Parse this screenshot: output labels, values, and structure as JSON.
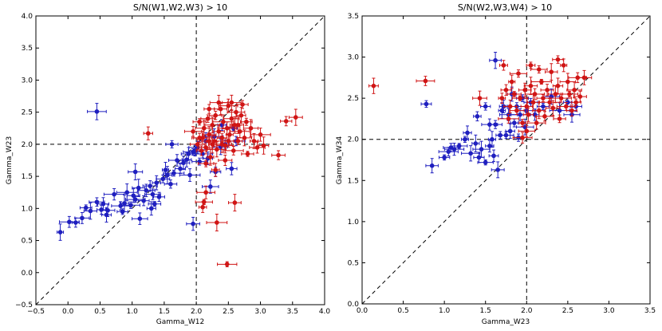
{
  "colors": {
    "blue": "#1f1fbf",
    "red": "#d01515",
    "axis": "#000000",
    "refline": "#000000"
  },
  "chart_data": [
    {
      "type": "scatter",
      "title": "S/N(W1,W2,W3) > 10",
      "xlabel": "Gamma_W12",
      "ylabel": "Gamma_W23",
      "xlim": [
        -0.5,
        4.0
      ],
      "ylim": [
        -0.5,
        4.0
      ],
      "xticks": [
        "−0.5",
        "0.0",
        "0.5",
        "1.0",
        "1.5",
        "2.0",
        "2.5",
        "3.0",
        "3.5",
        "4.0"
      ],
      "yticks": [
        "−0.5",
        "0.0",
        "0.5",
        "1.0",
        "1.5",
        "2.0",
        "2.5",
        "3.0",
        "3.5",
        "4.0"
      ],
      "reference_lines": {
        "vertical_x": 2.0,
        "horizontal_y": 2.0,
        "diagonal": "y=x"
      },
      "grid": false,
      "series": [
        {
          "color": "blue",
          "points": [
            [
              -0.12,
              0.63
            ],
            [
              0.02,
              0.79
            ],
            [
              0.12,
              0.78
            ],
            [
              0.22,
              0.85
            ],
            [
              0.28,
              1.01
            ],
            [
              0.35,
              0.96
            ],
            [
              0.45,
              1.1
            ],
            [
              0.52,
              0.98
            ],
            [
              0.55,
              1.07
            ],
            [
              0.62,
              0.97
            ],
            [
              0.72,
              1.22
            ],
            [
              0.82,
              1.04
            ],
            [
              0.88,
              1.08
            ],
            [
              0.92,
              1.25
            ],
            [
              0.98,
              1.05
            ],
            [
              1.02,
              1.2
            ],
            [
              1.05,
              1.14
            ],
            [
              1.1,
              1.32
            ],
            [
              1.12,
              0.84
            ],
            [
              1.18,
              1.12
            ],
            [
              1.22,
              1.28
            ],
            [
              1.28,
              1.35
            ],
            [
              1.32,
              1.22
            ],
            [
              1.35,
              1.07
            ],
            [
              1.38,
              1.4
            ],
            [
              1.42,
              1.18
            ],
            [
              1.48,
              1.46
            ],
            [
              1.52,
              1.6
            ],
            [
              1.55,
              1.52
            ],
            [
              1.6,
              1.38
            ],
            [
              1.65,
              1.55
            ],
            [
              1.7,
              1.75
            ],
            [
              1.75,
              1.62
            ],
            [
              1.8,
              1.71
            ],
            [
              1.85,
              1.76
            ],
            [
              1.88,
              1.85
            ],
            [
              1.9,
              1.52
            ],
            [
              1.95,
              1.88
            ],
            [
              1.98,
              1.9
            ],
            [
              2.02,
              1.95
            ],
            [
              2.05,
              1.73
            ],
            [
              2.1,
              1.85
            ],
            [
              2.15,
              2.05
            ],
            [
              2.18,
              1.78
            ],
            [
              2.22,
              1.34
            ],
            [
              2.28,
              2.12
            ],
            [
              2.3,
              1.57
            ],
            [
              2.38,
              1.96
            ],
            [
              2.4,
              2.3
            ],
            [
              2.45,
              2.0
            ],
            [
              2.55,
              1.62
            ],
            [
              2.58,
              2.25
            ],
            [
              2.62,
              2.05
            ],
            [
              1.05,
              1.57
            ],
            [
              1.62,
              2.0
            ],
            [
              0.45,
              2.51
            ],
            [
              1.95,
              0.76
            ],
            [
              0.6,
              0.9
            ],
            [
              0.85,
              0.95
            ],
            [
              1.3,
              1.0
            ]
          ]
        },
        {
          "color": "red",
          "points": [
            [
              1.25,
              2.17
            ],
            [
              1.95,
              2.2
            ],
            [
              2.02,
              2.0
            ],
            [
              2.05,
              2.35
            ],
            [
              2.08,
              1.9
            ],
            [
              2.1,
              2.1
            ],
            [
              2.12,
              2.25
            ],
            [
              2.15,
              1.95
            ],
            [
              2.18,
              2.4
            ],
            [
              2.2,
              2.15
            ],
            [
              2.22,
              1.8
            ],
            [
              2.25,
              2.3
            ],
            [
              2.28,
              2.05
            ],
            [
              2.3,
              2.45
            ],
            [
              2.32,
              1.92
            ],
            [
              2.35,
              2.2
            ],
            [
              2.38,
              2.55
            ],
            [
              2.4,
              2.1
            ],
            [
              2.42,
              2.35
            ],
            [
              2.45,
              1.98
            ],
            [
              2.48,
              2.25
            ],
            [
              2.5,
              2.6
            ],
            [
              2.52,
              2.15
            ],
            [
              2.55,
              2.4
            ],
            [
              2.58,
              1.9
            ],
            [
              2.6,
              2.3
            ],
            [
              2.62,
              2.5
            ],
            [
              2.65,
              2.05
            ],
            [
              2.68,
              2.2
            ],
            [
              2.7,
              2.45
            ],
            [
              2.72,
              2.62
            ],
            [
              2.75,
              2.1
            ],
            [
              2.78,
              2.35
            ],
            [
              2.8,
              1.85
            ],
            [
              2.85,
              2.25
            ],
            [
              2.9,
              2.05
            ],
            [
              2.95,
              1.95
            ],
            [
              3.0,
              2.15
            ],
            [
              3.05,
              1.98
            ],
            [
              2.2,
              2.55
            ],
            [
              2.35,
              2.65
            ],
            [
              2.55,
              2.65
            ],
            [
              2.15,
              1.7
            ],
            [
              2.3,
              1.6
            ],
            [
              2.45,
              1.75
            ],
            [
              2.15,
              1.25
            ],
            [
              2.12,
              1.1
            ],
            [
              2.1,
              1.02
            ],
            [
              2.6,
              1.09
            ],
            [
              2.32,
              0.78
            ],
            [
              2.48,
              0.13
            ],
            [
              3.28,
              1.83
            ],
            [
              3.4,
              2.36
            ],
            [
              3.55,
              2.42
            ],
            [
              2.25,
              2.0
            ],
            [
              2.4,
              2.0
            ],
            [
              2.5,
              2.05
            ],
            [
              2.65,
              2.3
            ],
            [
              2.05,
              2.1
            ],
            [
              2.2,
              2.05
            ]
          ]
        }
      ]
    },
    {
      "type": "scatter",
      "title": "S/N(W2,W3,W4) > 10",
      "xlabel": "Gamma_W23",
      "ylabel": "Gamma_W34",
      "xlim": [
        0.0,
        3.5
      ],
      "ylim": [
        0.0,
        3.5
      ],
      "xticks": [
        "0.0",
        "0.5",
        "1.0",
        "1.5",
        "2.0",
        "2.5",
        "3.0",
        "3.5"
      ],
      "yticks": [
        "0.0",
        "0.5",
        "1.0",
        "1.5",
        "2.0",
        "2.5",
        "3.0",
        "3.5"
      ],
      "reference_lines": {
        "vertical_x": 2.0,
        "horizontal_y": 2.0,
        "diagonal": "y=x"
      },
      "grid": false,
      "series": [
        {
          "color": "blue",
          "points": [
            [
              0.78,
              2.43
            ],
            [
              0.85,
              1.68
            ],
            [
              1.0,
              1.78
            ],
            [
              1.05,
              1.85
            ],
            [
              1.08,
              1.9
            ],
            [
              1.12,
              1.88
            ],
            [
              1.18,
              1.92
            ],
            [
              1.28,
              2.08
            ],
            [
              1.32,
              1.83
            ],
            [
              1.38,
              1.95
            ],
            [
              1.42,
              1.78
            ],
            [
              1.45,
              1.88
            ],
            [
              1.5,
              1.72
            ],
            [
              1.55,
              1.92
            ],
            [
              1.58,
              2.0
            ],
            [
              1.6,
              1.8
            ],
            [
              1.62,
              2.18
            ],
            [
              1.65,
              1.63
            ],
            [
              1.68,
              2.05
            ],
            [
              1.7,
              2.35
            ],
            [
              1.72,
              2.4
            ],
            [
              1.75,
              2.05
            ],
            [
              1.78,
              2.3
            ],
            [
              1.8,
              2.1
            ],
            [
              1.82,
              2.55
            ],
            [
              1.85,
              2.2
            ],
            [
              1.88,
              2.4
            ],
            [
              1.9,
              2.02
            ],
            [
              1.92,
              2.3
            ],
            [
              1.95,
              2.5
            ],
            [
              1.98,
              2.15
            ],
            [
              2.0,
              2.35
            ],
            [
              2.05,
              2.45
            ],
            [
              2.1,
              2.3
            ],
            [
              2.2,
              2.4
            ],
            [
              2.3,
              2.52
            ],
            [
              2.4,
              2.35
            ],
            [
              2.5,
              2.45
            ],
            [
              2.55,
              2.3
            ],
            [
              2.6,
              2.4
            ],
            [
              1.62,
              2.96
            ],
            [
              1.55,
              2.18
            ],
            [
              1.4,
              2.28
            ],
            [
              1.25,
              2.0
            ],
            [
              1.5,
              2.4
            ]
          ]
        },
        {
          "color": "red",
          "points": [
            [
              0.14,
              2.65
            ],
            [
              0.77,
              2.71
            ],
            [
              1.43,
              2.5
            ],
            [
              1.7,
              2.5
            ],
            [
              1.72,
              2.9
            ],
            [
              1.75,
              2.6
            ],
            [
              1.78,
              2.25
            ],
            [
              1.8,
              2.4
            ],
            [
              1.82,
              2.7
            ],
            [
              1.85,
              2.55
            ],
            [
              1.88,
              2.35
            ],
            [
              1.9,
              2.8
            ],
            [
              1.92,
              2.5
            ],
            [
              1.95,
              2.2
            ],
            [
              1.98,
              2.6
            ],
            [
              2.0,
              2.4
            ],
            [
              2.02,
              2.3
            ],
            [
              2.05,
              2.65
            ],
            [
              2.08,
              2.45
            ],
            [
              2.1,
              2.55
            ],
            [
              2.12,
              2.2
            ],
            [
              2.15,
              2.35
            ],
            [
              2.18,
              2.7
            ],
            [
              2.2,
              2.5
            ],
            [
              2.22,
              2.28
            ],
            [
              2.25,
              2.6
            ],
            [
              2.28,
              2.45
            ],
            [
              2.3,
              2.82
            ],
            [
              2.32,
              2.38
            ],
            [
              2.35,
              2.55
            ],
            [
              2.38,
              2.65
            ],
            [
              2.4,
              2.25
            ],
            [
              2.42,
              2.5
            ],
            [
              2.45,
              2.9
            ],
            [
              2.48,
              2.4
            ],
            [
              2.5,
              2.7
            ],
            [
              2.52,
              2.55
            ],
            [
              2.55,
              2.35
            ],
            [
              2.58,
              2.6
            ],
            [
              2.6,
              2.45
            ],
            [
              2.62,
              2.75
            ],
            [
              2.65,
              2.52
            ],
            [
              2.7,
              2.75
            ],
            [
              2.38,
              2.97
            ],
            [
              2.05,
              2.9
            ],
            [
              1.95,
              2.02
            ],
            [
              2.0,
              2.1
            ],
            [
              2.15,
              2.85
            ]
          ]
        }
      ]
    }
  ]
}
